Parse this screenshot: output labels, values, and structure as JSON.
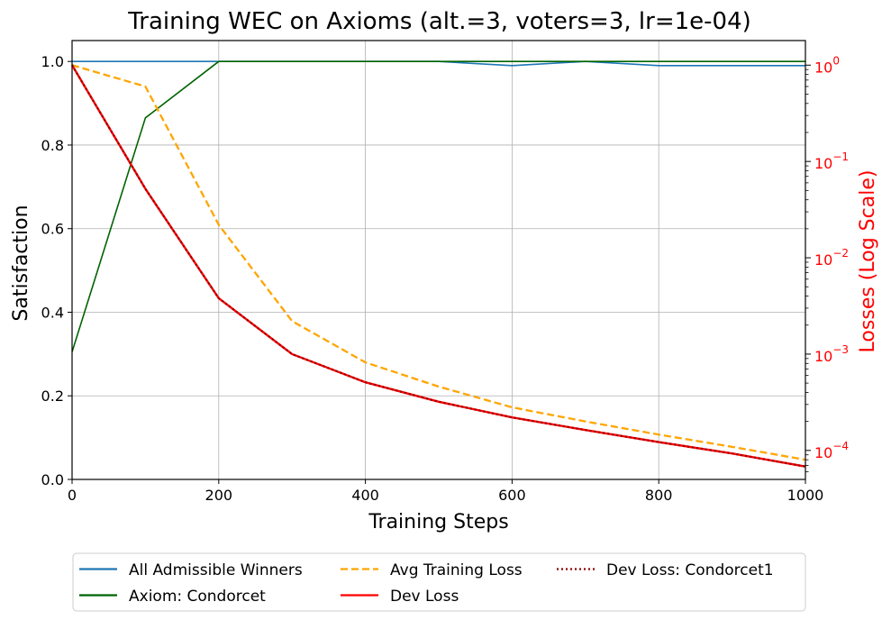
{
  "chart_data": {
    "type": "line",
    "title": "Training WEC on Axioms (alt.=3, voters=3, lr=1e-04)",
    "xlabel": "Training Steps",
    "ylabel": "Satisfaction",
    "y2label": "Losses (Log Scale)",
    "xlim": [
      0,
      1000
    ],
    "ylim": [
      0,
      1.05
    ],
    "y2lim": [
      5e-05,
      1.8
    ],
    "y2scale": "log",
    "grid": true,
    "legend_position": "bottom-center",
    "x_ticks": [
      "0",
      "200",
      "400",
      "600",
      "800",
      "1000"
    ],
    "y_ticks": [
      "0.0",
      "0.2",
      "0.4",
      "0.6",
      "0.8",
      "1.0"
    ],
    "y2_ticks": [
      {
        "base": "10",
        "exp": "0"
      },
      {
        "base": "10",
        "exp": "−1"
      },
      {
        "base": "10",
        "exp": "−2"
      },
      {
        "base": "10",
        "exp": "−3"
      },
      {
        "base": "10",
        "exp": "−4"
      }
    ],
    "x": [
      0,
      100,
      200,
      300,
      400,
      500,
      600,
      700,
      800,
      900,
      1000
    ],
    "series": [
      {
        "name": "All Admissible Winners",
        "axis": "left",
        "color": "#1f77b4",
        "style": "solid",
        "values": [
          1.0,
          1.0,
          1.0,
          1.0,
          1.0,
          1.0,
          0.99,
          1.0,
          0.99,
          0.99,
          0.99
        ]
      },
      {
        "name": "Axiom: Condorcet",
        "axis": "left",
        "color": "#006400",
        "style": "solid",
        "values": [
          0.305,
          0.865,
          1.0,
          1.0,
          1.0,
          1.0,
          1.0,
          1.0,
          1.0,
          1.0,
          1.0
        ]
      },
      {
        "name": "Avg Training Loss",
        "axis": "right",
        "color": "#ffa500",
        "style": "dashed",
        "values": [
          1.0,
          0.6,
          0.022,
          0.0022,
          0.00082,
          0.00046,
          0.00028,
          0.0002,
          0.000146,
          0.000109,
          8e-05
        ]
      },
      {
        "name": "Dev Loss",
        "axis": "right",
        "color": "#ff0000",
        "style": "solid",
        "values": [
          1.0,
          0.052,
          0.0038,
          0.001,
          0.00051,
          0.00032,
          0.00022,
          0.000163,
          0.000122,
          9.3e-05,
          6.8e-05
        ]
      },
      {
        "name": "Dev Loss: Condorcet1",
        "axis": "right",
        "color": "#8b0000",
        "style": "dotted",
        "values": [
          1.0,
          0.052,
          0.0038,
          0.001,
          0.00051,
          0.00032,
          0.00022,
          0.000163,
          0.000122,
          9.3e-05,
          6.8e-05
        ]
      }
    ]
  }
}
